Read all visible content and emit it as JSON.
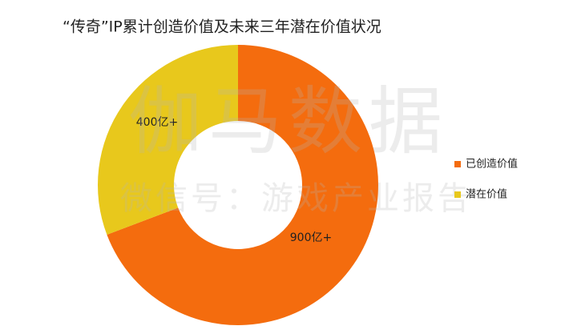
{
  "chart_data": {
    "type": "donut",
    "title": "“传奇”IP累计创造价值及未来三年潜在价值状况",
    "categories": [
      "已创造价值",
      "潜在价值"
    ],
    "values": [
      900,
      400
    ],
    "value_labels": [
      "900亿+",
      "400亿+"
    ],
    "colors": [
      "#f46c0e",
      "#e8c81c"
    ],
    "legend": "right",
    "watermark": [
      "伽马数据",
      "微信号：游戏产业报告"
    ]
  }
}
